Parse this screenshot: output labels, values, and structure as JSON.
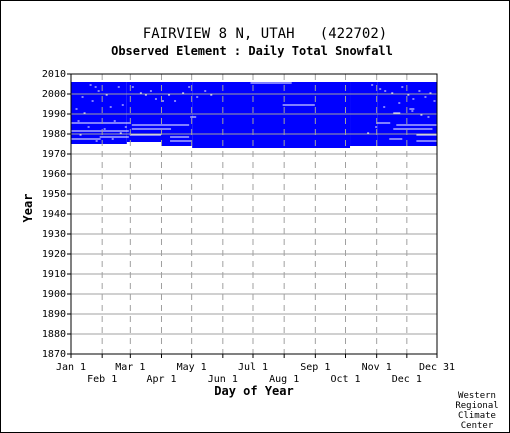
{
  "chart_data": {
    "type": "heatmap",
    "title": "FAIRVIEW 8 N, UTAH   (422702)",
    "subtitle": "Observed Element : Daily Total Snowfall",
    "xlabel": "Day of Year",
    "ylabel": "Year",
    "xlim": [
      1,
      365
    ],
    "ylim": [
      1870,
      2010
    ],
    "y_ticks": [
      1870,
      1880,
      1890,
      1900,
      1910,
      1920,
      1930,
      1940,
      1950,
      1960,
      1970,
      1980,
      1990,
      2000,
      2010
    ],
    "x_ticks_row1": [
      {
        "label": "Jan 1",
        "day": 1
      },
      {
        "label": "Mar 1",
        "day": 60
      },
      {
        "label": "May 1",
        "day": 121
      },
      {
        "label": "Jul 1",
        "day": 182
      },
      {
        "label": "Sep 1",
        "day": 244
      },
      {
        "label": "Nov 1",
        "day": 305
      },
      {
        "label": "Dec 31",
        "day": 365
      }
    ],
    "x_ticks_row2": [
      {
        "label": "Feb 1",
        "day": 32
      },
      {
        "label": "Apr 1",
        "day": 91
      },
      {
        "label": "Jun 1",
        "day": 152
      },
      {
        "label": "Aug 1",
        "day": 213
      },
      {
        "label": "Oct 1",
        "day": 274
      },
      {
        "label": "Dec 1",
        "day": 335
      }
    ],
    "grid": true,
    "fill_color": "#0000ff",
    "gap_color": "#ffffff",
    "observed_blocks": [
      {
        "day_start": 1,
        "day_end": 56,
        "year_start": 1975,
        "year_end": 2005
      },
      {
        "day_start": 57,
        "day_end": 91,
        "year_start": 1976,
        "year_end": 2005
      },
      {
        "day_start": 92,
        "day_end": 121,
        "year_start": 1974,
        "year_end": 2005
      },
      {
        "day_start": 122,
        "day_end": 278,
        "year_start": 1973,
        "year_end": 2005
      },
      {
        "day_start": 279,
        "day_end": 305,
        "year_start": 1974,
        "year_end": 2005
      },
      {
        "day_start": 306,
        "day_end": 365,
        "year_start": 1974,
        "year_end": 2005
      }
    ],
    "missing_segments": [
      {
        "day_start": 2,
        "day_end": 60,
        "year": 1985
      },
      {
        "day_start": 2,
        "day_end": 58,
        "year": 1981
      },
      {
        "day_start": 2,
        "day_end": 30,
        "year": 1977
      },
      {
        "day_start": 30,
        "day_end": 58,
        "year": 1978
      },
      {
        "day_start": 62,
        "day_end": 118,
        "year": 1984
      },
      {
        "day_start": 62,
        "day_end": 100,
        "year": 1982
      },
      {
        "day_start": 60,
        "day_end": 90,
        "year": 1979
      },
      {
        "day_start": 100,
        "day_end": 118,
        "year": 1978
      },
      {
        "day_start": 100,
        "day_end": 120,
        "year": 1976
      },
      {
        "day_start": 120,
        "day_end": 125,
        "year": 1988
      },
      {
        "day_start": 180,
        "day_end": 220,
        "year": 2005
      },
      {
        "day_start": 212,
        "day_end": 243,
        "year": 1994
      },
      {
        "day_start": 305,
        "day_end": 318,
        "year": 1985
      },
      {
        "day_start": 325,
        "day_end": 365,
        "year": 1984
      },
      {
        "day_start": 322,
        "day_end": 360,
        "year": 1982
      },
      {
        "day_start": 318,
        "day_end": 330,
        "year": 1977
      },
      {
        "day_start": 322,
        "day_end": 328,
        "year": 1990
      },
      {
        "day_start": 338,
        "day_end": 342,
        "year": 1992
      },
      {
        "day_start": 345,
        "day_end": 365,
        "year": 1979
      },
      {
        "day_start": 345,
        "day_end": 365,
        "year": 1976
      }
    ],
    "missing_dots": [
      [
        20,
        2004
      ],
      [
        25,
        2003
      ],
      [
        28,
        2001
      ],
      [
        12,
        1998
      ],
      [
        22,
        1996
      ],
      [
        36,
        1999
      ],
      [
        48,
        2003
      ],
      [
        6,
        1992
      ],
      [
        14,
        1990
      ],
      [
        40,
        1993
      ],
      [
        52,
        1994
      ],
      [
        8,
        1986
      ],
      [
        18,
        1983
      ],
      [
        34,
        1982
      ],
      [
        44,
        1986
      ],
      [
        55,
        1983
      ],
      [
        10,
        1979
      ],
      [
        26,
        1976
      ],
      [
        42,
        1977
      ],
      [
        50,
        1980
      ],
      [
        62,
        2003
      ],
      [
        70,
        2000
      ],
      [
        75,
        1999
      ],
      [
        80,
        2001
      ],
      [
        85,
        1997
      ],
      [
        92,
        1996
      ],
      [
        98,
        1999
      ],
      [
        104,
        1996
      ],
      [
        112,
        2000
      ],
      [
        118,
        2003
      ],
      [
        126,
        1998
      ],
      [
        134,
        2001
      ],
      [
        140,
        1999
      ],
      [
        300,
        2004
      ],
      [
        308,
        2002
      ],
      [
        313,
        2001
      ],
      [
        320,
        2000
      ],
      [
        330,
        2003
      ],
      [
        336,
        1999
      ],
      [
        341,
        1997
      ],
      [
        347,
        2001
      ],
      [
        353,
        1998
      ],
      [
        358,
        2000
      ],
      [
        362,
        1996
      ],
      [
        312,
        1993
      ],
      [
        327,
        1995
      ],
      [
        340,
        1991
      ],
      [
        349,
        1989
      ],
      [
        356,
        1988
      ],
      [
        296,
        1980
      ],
      [
        304,
        1983
      ]
    ]
  },
  "credit": [
    "Western",
    "Regional",
    "Climate",
    "Center"
  ]
}
